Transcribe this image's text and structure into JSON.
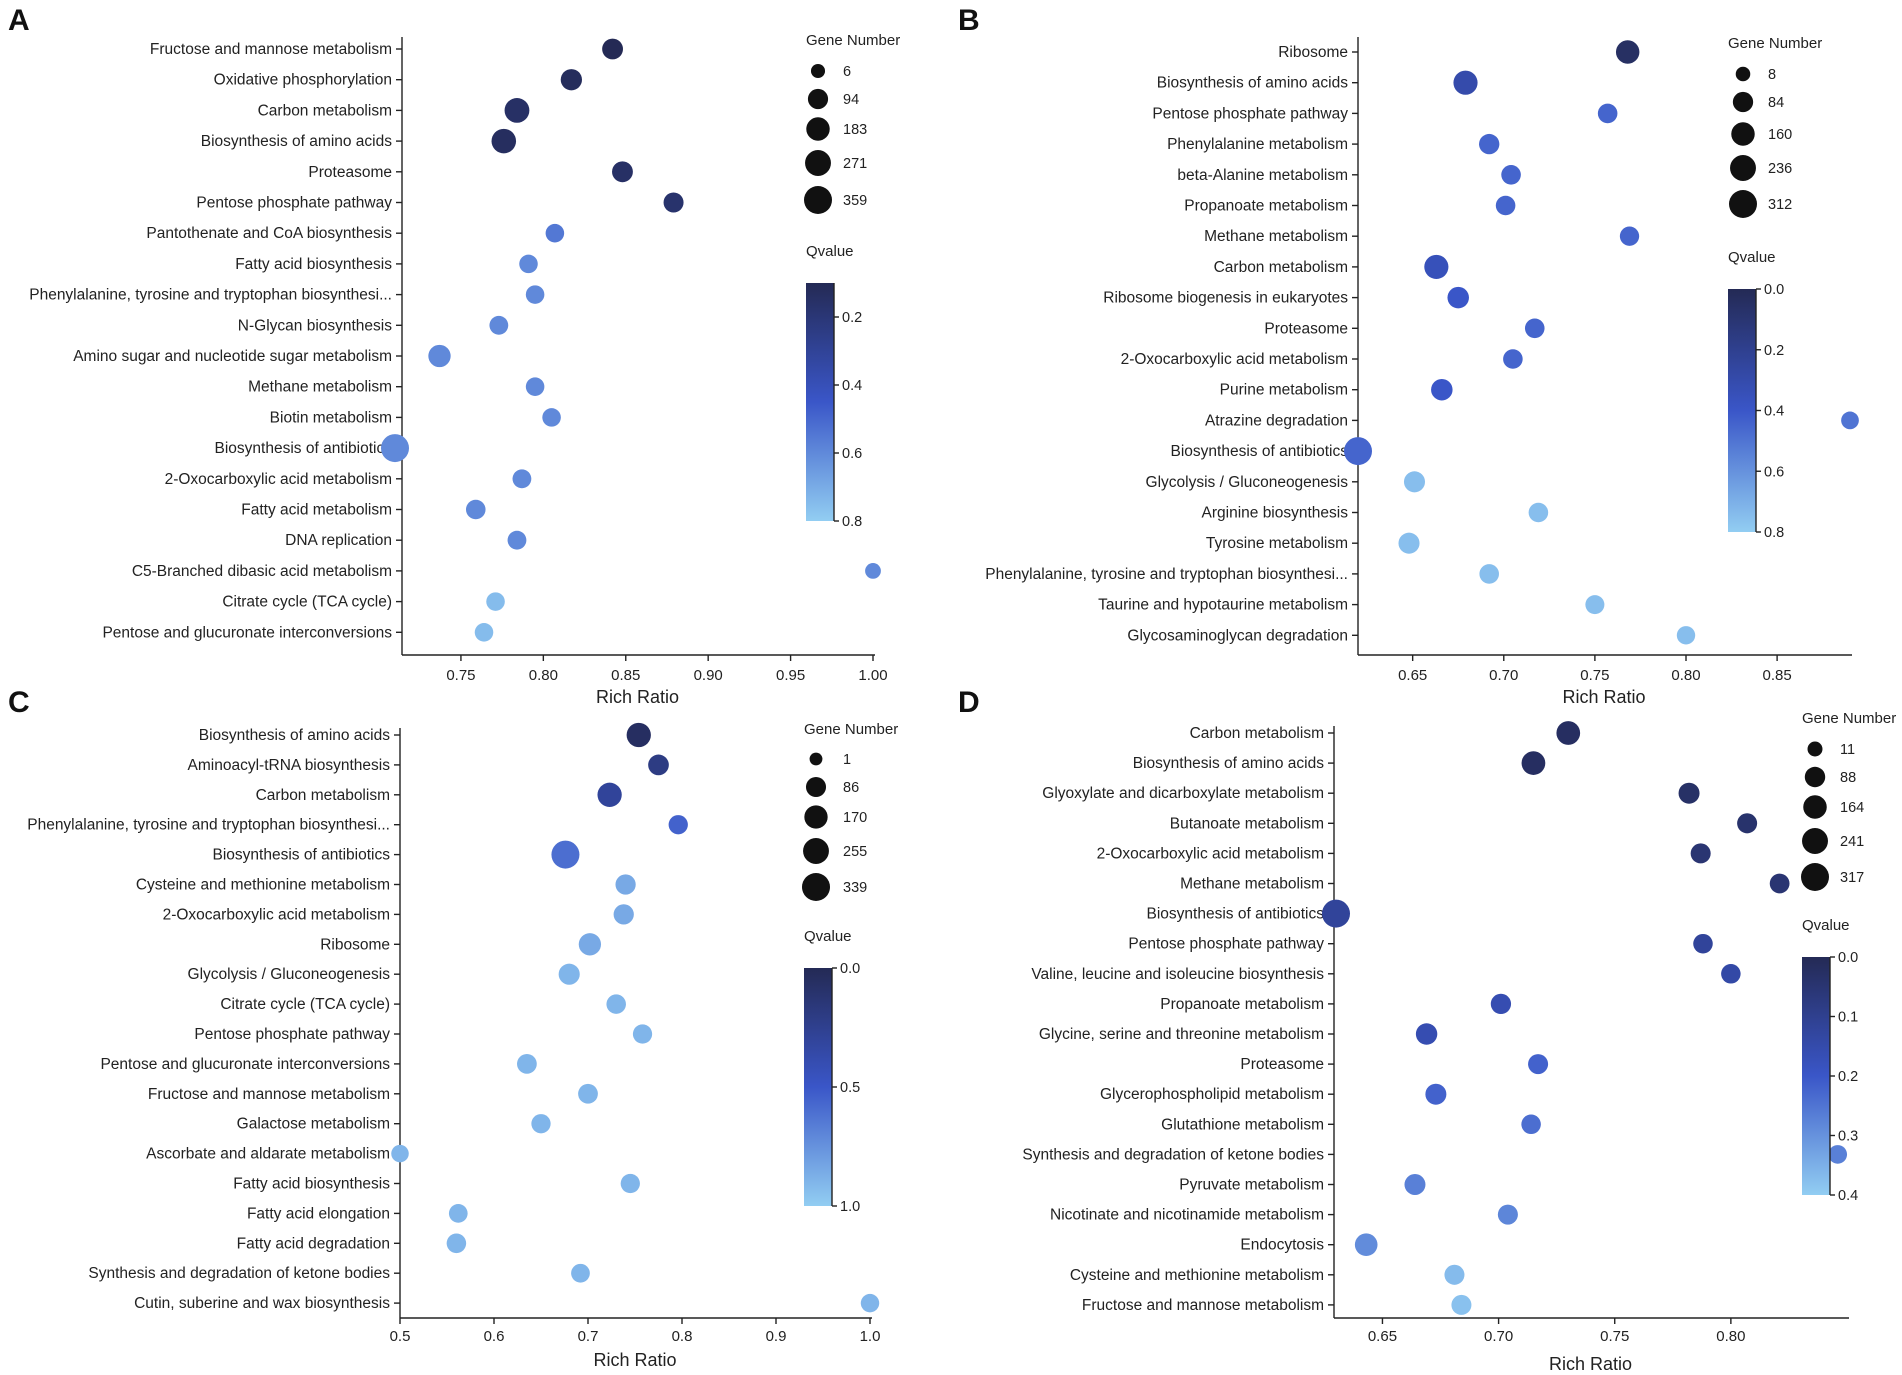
{
  "figure": {
    "background": "#ffffff"
  },
  "colors": {
    "q_low": "#242a55",
    "q_mid": "#3a56c8",
    "q_high": "#92cdf2"
  },
  "chart_data": [
    {
      "panel": "A",
      "type": "scatter",
      "subtype": "bubble",
      "xlabel": "Rich Ratio",
      "x_ticks": [
        0.75,
        0.8,
        0.85,
        0.9,
        0.95,
        1.0
      ],
      "x_tick_labels": [
        "0.75",
        "0.80",
        "0.85",
        "0.90",
        "0.95",
        "1.00"
      ],
      "xlim": [
        0.71,
        1.0
      ],
      "size_legend_title": "Gene Number",
      "size_legend": [
        6,
        94,
        183,
        271,
        359
      ],
      "color_legend_title": "Qvalue",
      "color_range": [
        0.1,
        0.8
      ],
      "color_ticks": [
        0.2,
        0.4,
        0.6,
        0.8
      ],
      "color_tick_labels": [
        "0.2",
        "0.4",
        "0.6",
        "0.8"
      ],
      "points": [
        {
          "term": "Fructose and mannose metabolism",
          "x": 0.842,
          "gene_number": 110,
          "qvalue": 0.1
        },
        {
          "term": "Oxidative phosphorylation",
          "x": 0.817,
          "gene_number": 120,
          "qvalue": 0.12
        },
        {
          "term": "Carbon metabolism",
          "x": 0.784,
          "gene_number": 230,
          "qvalue": 0.15
        },
        {
          "term": "Biosynthesis of amino acids",
          "x": 0.776,
          "gene_number": 220,
          "qvalue": 0.13
        },
        {
          "term": "Proteasome",
          "x": 0.848,
          "gene_number": 110,
          "qvalue": 0.15
        },
        {
          "term": "Pentose phosphate pathway",
          "x": 0.879,
          "gene_number": 90,
          "qvalue": 0.17
        },
        {
          "term": "Pantothenate and CoA biosynthesis",
          "x": 0.807,
          "gene_number": 60,
          "qvalue": 0.55
        },
        {
          "term": "Fatty acid biosynthesis",
          "x": 0.791,
          "gene_number": 60,
          "qvalue": 0.6
        },
        {
          "term": "Phenylalanine, tyrosine and tryptophan biosynthesi...",
          "x": 0.795,
          "gene_number": 60,
          "qvalue": 0.6
        },
        {
          "term": "N-Glycan biosynthesis",
          "x": 0.773,
          "gene_number": 65,
          "qvalue": 0.6
        },
        {
          "term": "Amino sugar and nucleotide sugar metabolism",
          "x": 0.737,
          "gene_number": 150,
          "qvalue": 0.6
        },
        {
          "term": "Methane metabolism",
          "x": 0.795,
          "gene_number": 60,
          "qvalue": 0.6
        },
        {
          "term": "Biotin metabolism",
          "x": 0.805,
          "gene_number": 60,
          "qvalue": 0.6
        },
        {
          "term": "Biosynthesis of antibiotics",
          "x": 0.71,
          "gene_number": 359,
          "qvalue": 0.6
        },
        {
          "term": "2-Oxocarboxylic acid metabolism",
          "x": 0.787,
          "gene_number": 65,
          "qvalue": 0.6
        },
        {
          "term": "Fatty acid metabolism",
          "x": 0.759,
          "gene_number": 80,
          "qvalue": 0.6
        },
        {
          "term": "DNA replication",
          "x": 0.784,
          "gene_number": 65,
          "qvalue": 0.6
        },
        {
          "term": "C5-Branched dibasic acid metabolism",
          "x": 1.0,
          "gene_number": 20,
          "qvalue": 0.6
        },
        {
          "term": "Citrate cycle (TCA cycle)",
          "x": 0.771,
          "gene_number": 60,
          "qvalue": 0.75
        },
        {
          "term": "Pentose and glucuronate interconversions",
          "x": 0.764,
          "gene_number": 60,
          "qvalue": 0.75
        }
      ]
    },
    {
      "panel": "B",
      "type": "scatter",
      "subtype": "bubble",
      "xlabel": "Rich Ratio",
      "x_ticks": [
        0.65,
        0.7,
        0.75,
        0.8,
        0.85
      ],
      "x_tick_labels": [
        "0.65",
        "0.70",
        "0.75",
        "0.80",
        "0.85"
      ],
      "xlim": [
        0.62,
        0.89
      ],
      "size_legend_title": "Gene Number",
      "size_legend": [
        8,
        84,
        160,
        236,
        312
      ],
      "color_legend_title": "Qvalue",
      "color_range": [
        0.0,
        0.8
      ],
      "color_ticks": [
        0.0,
        0.2,
        0.4,
        0.6,
        0.8
      ],
      "color_tick_labels": [
        "0.0",
        "0.2",
        "0.4",
        "0.6",
        "0.8"
      ],
      "points": [
        {
          "term": "Ribosome",
          "x": 0.768,
          "gene_number": 160,
          "qvalue": 0.05
        },
        {
          "term": "Biosynthesis of amino acids",
          "x": 0.679,
          "gene_number": 180,
          "qvalue": 0.3
        },
        {
          "term": "Pentose phosphate pathway",
          "x": 0.757,
          "gene_number": 70,
          "qvalue": 0.45
        },
        {
          "term": "Phenylalanine metabolism",
          "x": 0.692,
          "gene_number": 85,
          "qvalue": 0.45
        },
        {
          "term": "beta-Alanine metabolism",
          "x": 0.704,
          "gene_number": 70,
          "qvalue": 0.45
        },
        {
          "term": "Propanoate metabolism",
          "x": 0.701,
          "gene_number": 70,
          "qvalue": 0.45
        },
        {
          "term": "Methane metabolism",
          "x": 0.769,
          "gene_number": 65,
          "qvalue": 0.45
        },
        {
          "term": "Carbon metabolism",
          "x": 0.663,
          "gene_number": 180,
          "qvalue": 0.35
        },
        {
          "term": "Ribosome biogenesis in eukaryotes",
          "x": 0.675,
          "gene_number": 110,
          "qvalue": 0.4
        },
        {
          "term": "Proteasome",
          "x": 0.717,
          "gene_number": 70,
          "qvalue": 0.45
        },
        {
          "term": "2-Oxocarboxylic acid metabolism",
          "x": 0.705,
          "gene_number": 70,
          "qvalue": 0.45
        },
        {
          "term": "Purine metabolism",
          "x": 0.666,
          "gene_number": 110,
          "qvalue": 0.4
        },
        {
          "term": "Atrazine degradation",
          "x": 0.89,
          "gene_number": 40,
          "qvalue": 0.5
        },
        {
          "term": "Biosynthesis of antibiotics",
          "x": 0.62,
          "gene_number": 312,
          "qvalue": 0.45
        },
        {
          "term": "Glycolysis / Gluconeogenesis",
          "x": 0.651,
          "gene_number": 100,
          "qvalue": 0.75
        },
        {
          "term": "Arginine biosynthesis",
          "x": 0.719,
          "gene_number": 70,
          "qvalue": 0.75
        },
        {
          "term": "Tyrosine metabolism",
          "x": 0.648,
          "gene_number": 100,
          "qvalue": 0.75
        },
        {
          "term": "Phenylalanine, tyrosine and tryptophan biosynthesi...",
          "x": 0.692,
          "gene_number": 70,
          "qvalue": 0.75
        },
        {
          "term": "Taurine and hypotaurine metabolism",
          "x": 0.75,
          "gene_number": 60,
          "qvalue": 0.75
        },
        {
          "term": "Glycosaminoglycan degradation",
          "x": 0.8,
          "gene_number": 50,
          "qvalue": 0.75
        }
      ]
    },
    {
      "panel": "C",
      "type": "scatter",
      "subtype": "bubble",
      "xlabel": "Rich Ratio",
      "x_ticks": [
        0.5,
        0.6,
        0.7,
        0.8,
        0.9,
        1.0
      ],
      "x_tick_labels": [
        "0.5",
        "0.6",
        "0.7",
        "0.8",
        "0.9",
        "1.0"
      ],
      "xlim": [
        0.5,
        1.0
      ],
      "size_legend_title": "Gene Number",
      "size_legend": [
        1,
        86,
        170,
        255,
        339
      ],
      "color_legend_title": "Qvalue",
      "color_range": [
        0.0,
        1.0
      ],
      "color_ticks": [
        0.0,
        0.5,
        1.0
      ],
      "color_tick_labels": [
        "0.0",
        "0.5",
        "1.0"
      ],
      "points": [
        {
          "term": "Biosynthesis of amino acids",
          "x": 0.754,
          "gene_number": 200,
          "qvalue": 0.05
        },
        {
          "term": "Aminoacyl-tRNA biosynthesis",
          "x": 0.775,
          "gene_number": 100,
          "qvalue": 0.2
        },
        {
          "term": "Carbon metabolism",
          "x": 0.723,
          "gene_number": 200,
          "qvalue": 0.3
        },
        {
          "term": "Phenylalanine, tyrosine and tryptophan biosynthesi...",
          "x": 0.796,
          "gene_number": 70,
          "qvalue": 0.55
        },
        {
          "term": "Biosynthesis of antibiotics",
          "x": 0.676,
          "gene_number": 339,
          "qvalue": 0.6
        },
        {
          "term": "Cysteine and methionine metabolism",
          "x": 0.74,
          "gene_number": 90,
          "qvalue": 0.85
        },
        {
          "term": "2-Oxocarboxylic acid metabolism",
          "x": 0.738,
          "gene_number": 90,
          "qvalue": 0.85
        },
        {
          "term": "Ribosome",
          "x": 0.702,
          "gene_number": 140,
          "qvalue": 0.85
        },
        {
          "term": "Glycolysis / Gluconeogenesis",
          "x": 0.68,
          "gene_number": 110,
          "qvalue": 0.9
        },
        {
          "term": "Citrate cycle (TCA cycle)",
          "x": 0.73,
          "gene_number": 75,
          "qvalue": 0.9
        },
        {
          "term": "Pentose phosphate pathway",
          "x": 0.758,
          "gene_number": 70,
          "qvalue": 0.9
        },
        {
          "term": "Pentose and glucuronate interconversions",
          "x": 0.635,
          "gene_number": 80,
          "qvalue": 0.9
        },
        {
          "term": "Fructose and mannose metabolism",
          "x": 0.7,
          "gene_number": 80,
          "qvalue": 0.9
        },
        {
          "term": "Galactose metabolism",
          "x": 0.65,
          "gene_number": 70,
          "qvalue": 0.9
        },
        {
          "term": "Ascorbate and aldarate metabolism",
          "x": 0.5,
          "gene_number": 40,
          "qvalue": 0.9
        },
        {
          "term": "Fatty acid biosynthesis",
          "x": 0.745,
          "gene_number": 70,
          "qvalue": 0.9
        },
        {
          "term": "Fatty acid elongation",
          "x": 0.562,
          "gene_number": 60,
          "qvalue": 0.9
        },
        {
          "term": "Fatty acid degradation",
          "x": 0.56,
          "gene_number": 75,
          "qvalue": 0.9
        },
        {
          "term": "Synthesis and degradation of ketone bodies",
          "x": 0.692,
          "gene_number": 60,
          "qvalue": 0.9
        },
        {
          "term": "Cutin, suberine and wax biosynthesis",
          "x": 1.0,
          "gene_number": 55,
          "qvalue": 0.9
        }
      ]
    },
    {
      "panel": "D",
      "type": "scatter",
      "subtype": "bubble",
      "xlabel": "Rich Ratio",
      "x_ticks": [
        0.65,
        0.7,
        0.75,
        0.8
      ],
      "x_tick_labels": [
        "0.65",
        "0.70",
        "0.75",
        "0.80"
      ],
      "xlim": [
        0.63,
        0.85
      ],
      "size_legend_title": "Gene Number",
      "size_legend": [
        11,
        88,
        164,
        241,
        317
      ],
      "color_legend_title": "Qvalue",
      "color_range": [
        0.0,
        0.4
      ],
      "color_ticks": [
        0.0,
        0.1,
        0.2,
        0.3,
        0.4
      ],
      "color_tick_labels": [
        "0.0",
        "0.1",
        "0.2",
        "0.3",
        "0.4"
      ],
      "points": [
        {
          "term": "Carbon metabolism",
          "x": 0.73,
          "gene_number": 170,
          "qvalue": 0.02
        },
        {
          "term": "Biosynthesis of amino acids",
          "x": 0.715,
          "gene_number": 170,
          "qvalue": 0.02
        },
        {
          "term": "Glyoxylate and dicarboxylate metabolism",
          "x": 0.782,
          "gene_number": 100,
          "qvalue": 0.03
        },
        {
          "term": "Butanoate metabolism",
          "x": 0.807,
          "gene_number": 80,
          "qvalue": 0.04
        },
        {
          "term": "2-Oxocarboxylic acid metabolism",
          "x": 0.787,
          "gene_number": 80,
          "qvalue": 0.05
        },
        {
          "term": "Methane metabolism",
          "x": 0.821,
          "gene_number": 75,
          "qvalue": 0.05
        },
        {
          "term": "Biosynthesis of antibiotics",
          "x": 0.63,
          "gene_number": 317,
          "qvalue": 0.12
        },
        {
          "term": "Pentose phosphate pathway",
          "x": 0.788,
          "gene_number": 70,
          "qvalue": 0.12
        },
        {
          "term": "Valine, leucine and isoleucine biosynthesis",
          "x": 0.8,
          "gene_number": 70,
          "qvalue": 0.14
        },
        {
          "term": "Propanoate metabolism",
          "x": 0.701,
          "gene_number": 85,
          "qvalue": 0.16
        },
        {
          "term": "Glycine, serine and threonine metabolism",
          "x": 0.669,
          "gene_number": 110,
          "qvalue": 0.16
        },
        {
          "term": "Proteasome",
          "x": 0.717,
          "gene_number": 80,
          "qvalue": 0.22
        },
        {
          "term": "Glycerophospholipid metabolism",
          "x": 0.673,
          "gene_number": 100,
          "qvalue": 0.22
        },
        {
          "term": "Glutathione metabolism",
          "x": 0.714,
          "gene_number": 70,
          "qvalue": 0.24
        },
        {
          "term": "Synthesis and degradation of ketone bodies",
          "x": 0.846,
          "gene_number": 55,
          "qvalue": 0.27
        },
        {
          "term": "Pyruvate metabolism",
          "x": 0.664,
          "gene_number": 100,
          "qvalue": 0.27
        },
        {
          "term": "Nicotinate and nicotinamide metabolism",
          "x": 0.704,
          "gene_number": 80,
          "qvalue": 0.28
        },
        {
          "term": "Endocytosis",
          "x": 0.643,
          "gene_number": 140,
          "qvalue": 0.29
        },
        {
          "term": "Cysteine and methionine metabolism",
          "x": 0.681,
          "gene_number": 80,
          "qvalue": 0.37
        },
        {
          "term": "Fructose and mannose metabolism",
          "x": 0.684,
          "gene_number": 80,
          "qvalue": 0.38
        }
      ]
    }
  ]
}
